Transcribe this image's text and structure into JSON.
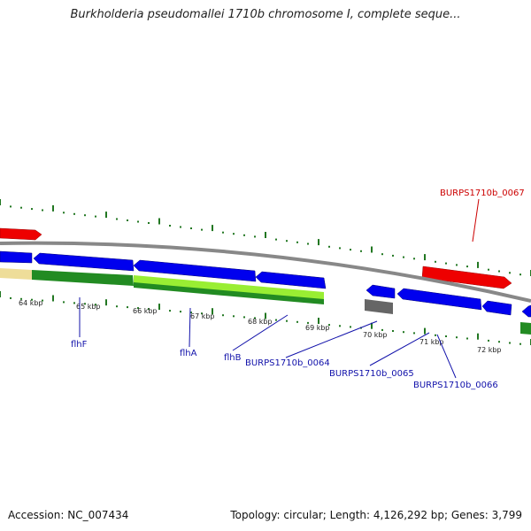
{
  "title": "Burkholderia pseudomallei 1710b chromosome I, complete seque...",
  "accession": "Accession: NC_007434",
  "summary": "Topology: circular; Length: 4,126,292 bp; Genes: 3,799",
  "colors": {
    "forward_cds": "#ff0000",
    "reverse_cds": "#0000ee",
    "gene_track": "#228b22",
    "gene_track_light": "#99ee33",
    "pale_track": "#eedd99",
    "pseudo": "#777777",
    "backbone": "#888888",
    "dotted_ring": "#227722",
    "label_blue": "#1111aa",
    "label_red": "#cc0000"
  },
  "ticks": [
    {
      "label": "64 kbp"
    },
    {
      "label": "65 kbp"
    },
    {
      "label": "66 kbp"
    },
    {
      "label": "67 kbp"
    },
    {
      "label": "68 kbp"
    },
    {
      "label": "69 kbp"
    },
    {
      "label": "70 kbp"
    },
    {
      "label": "71 kbp"
    },
    {
      "label": "72 kbp"
    }
  ],
  "gene_labels": [
    {
      "id": "flhF",
      "text": "flhF"
    },
    {
      "id": "flhA",
      "text": "flhA"
    },
    {
      "id": "flhB",
      "text": "flhB"
    },
    {
      "id": "BURPS1710b_0064",
      "text": "BURPS1710b_0064"
    },
    {
      "id": "BURPS1710b_0065",
      "text": "BURPS1710b_0065"
    },
    {
      "id": "BURPS1710b_0066",
      "text": "BURPS1710b_0066"
    },
    {
      "id": "BURPS1710b_0067",
      "text": "BURPS1710b_0067"
    }
  ]
}
